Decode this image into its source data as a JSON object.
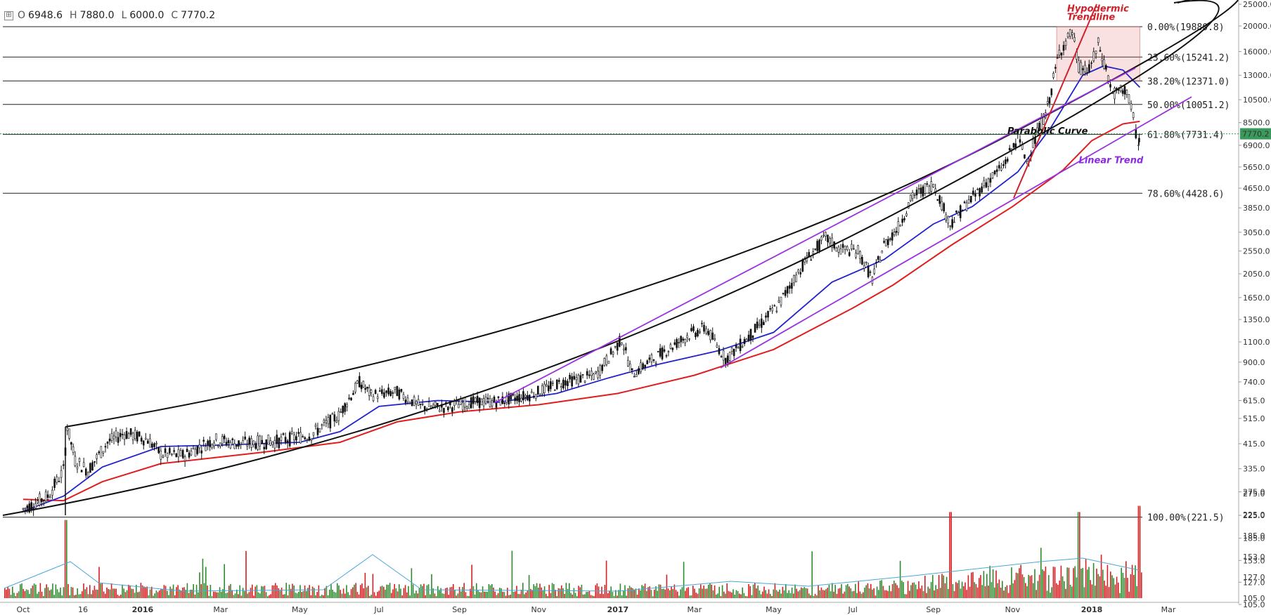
{
  "ohlc": {
    "toggle_icon": "collapse-icon",
    "o_key": "O",
    "o": "6948.6",
    "h_key": "H",
    "h": "7880.0",
    "l_key": "L",
    "l": "6000.0",
    "c_key": "C",
    "c": "7770.2"
  },
  "chart_data": {
    "type": "candlestick",
    "title": "",
    "y_scale": "log",
    "ylim": [
      100,
      25000
    ],
    "y_ticks": [
      "105.0",
      "127.0",
      "153.0",
      "185.0",
      "225.0",
      "275.0",
      "335.0",
      "415.0",
      "515.0",
      "615.0",
      "740.0",
      "900.0",
      "1100.0",
      "1350.0",
      "1650.0",
      "2050.0",
      "2550.0",
      "3050.0",
      "3850.0",
      "4650.0",
      "5650.0",
      "6900.0",
      "8500.0",
      "10500.0",
      "13000.0",
      "16000.0",
      "20000.0",
      "25000.0"
    ],
    "x_ticks": [
      {
        "label": "Oct",
        "date": "2015-10-01",
        "bold": false
      },
      {
        "label": "16",
        "date": "2015-11-16",
        "bold": false
      },
      {
        "label": "2016",
        "date": "2016-01-01",
        "bold": true
      },
      {
        "label": "Mar",
        "date": "2016-03-01",
        "bold": false
      },
      {
        "label": "May",
        "date": "2016-05-01",
        "bold": false
      },
      {
        "label": "Jul",
        "date": "2016-07-01",
        "bold": false
      },
      {
        "label": "Sep",
        "date": "2016-09-01",
        "bold": false
      },
      {
        "label": "Nov",
        "date": "2016-11-01",
        "bold": false
      },
      {
        "label": "2017",
        "date": "2017-01-01",
        "bold": true
      },
      {
        "label": "Mar",
        "date": "2017-03-01",
        "bold": false
      },
      {
        "label": "May",
        "date": "2017-05-01",
        "bold": false
      },
      {
        "label": "Jul",
        "date": "2017-07-01",
        "bold": false
      },
      {
        "label": "Sep",
        "date": "2017-09-01",
        "bold": false
      },
      {
        "label": "Nov",
        "date": "2017-11-01",
        "bold": false
      },
      {
        "label": "2018",
        "date": "2018-01-01",
        "bold": true
      },
      {
        "label": "Mar",
        "date": "2018-03-01",
        "bold": false
      }
    ],
    "last_price": {
      "label": "7770.2",
      "value": 7770.2,
      "color": "#3a9a5b"
    },
    "fib_levels": [
      {
        "label": "0.00%(19880.8)",
        "value": 19880.8
      },
      {
        "label": "23.60%(15241.2)",
        "value": 15241.2
      },
      {
        "label": "38.20%(12371.0)",
        "value": 12371.0
      },
      {
        "label": "50.00%(10051.2)",
        "value": 10051.2
      },
      {
        "label": "61.80%(7731.4)",
        "value": 7731.4
      },
      {
        "label": "78.60%(4428.6)",
        "value": 4428.6
      },
      {
        "label": "100.00%(221.5)",
        "value": 221.5
      }
    ],
    "price_series": [
      [
        "2015-10-01",
        237
      ],
      [
        "2015-10-20",
        265
      ],
      [
        "2015-11-01",
        330
      ],
      [
        "2015-11-04",
        480
      ],
      [
        "2015-11-10",
        360
      ],
      [
        "2015-11-20",
        330
      ],
      [
        "2015-12-05",
        420
      ],
      [
        "2015-12-18",
        455
      ],
      [
        "2016-01-05",
        430
      ],
      [
        "2016-01-15",
        380
      ],
      [
        "2016-02-01",
        375
      ],
      [
        "2016-02-25",
        430
      ],
      [
        "2016-03-15",
        415
      ],
      [
        "2016-04-15",
        425
      ],
      [
        "2016-05-10",
        450
      ],
      [
        "2016-05-31",
        530
      ],
      [
        "2016-06-16",
        740
      ],
      [
        "2016-06-25",
        650
      ],
      [
        "2016-07-15",
        670
      ],
      [
        "2016-08-02",
        580
      ],
      [
        "2016-08-20",
        575
      ],
      [
        "2016-09-10",
        605
      ],
      [
        "2016-10-01",
        610
      ],
      [
        "2016-10-25",
        650
      ],
      [
        "2016-11-20",
        740
      ],
      [
        "2016-12-15",
        790
      ],
      [
        "2017-01-04",
        1130
      ],
      [
        "2017-01-12",
        800
      ],
      [
        "2017-02-01",
        960
      ],
      [
        "2017-02-25",
        1180
      ],
      [
        "2017-03-10",
        1250
      ],
      [
        "2017-03-25",
        930
      ],
      [
        "2017-04-15",
        1200
      ],
      [
        "2017-05-05",
        1550
      ],
      [
        "2017-05-25",
        2300
      ],
      [
        "2017-06-10",
        2900
      ],
      [
        "2017-06-20",
        2600
      ],
      [
        "2017-07-05",
        2550
      ],
      [
        "2017-07-16",
        1950
      ],
      [
        "2017-07-25",
        2700
      ],
      [
        "2017-08-05",
        3200
      ],
      [
        "2017-08-16",
        4300
      ],
      [
        "2017-09-01",
        4850
      ],
      [
        "2017-09-14",
        3300
      ],
      [
        "2017-09-25",
        3900
      ],
      [
        "2017-10-10",
        4800
      ],
      [
        "2017-10-25",
        5700
      ],
      [
        "2017-11-05",
        7400
      ],
      [
        "2017-11-12",
        6000
      ],
      [
        "2017-11-28",
        9800
      ],
      [
        "2017-12-07",
        16000
      ],
      [
        "2017-12-17",
        19000
      ],
      [
        "2017-12-22",
        14000
      ],
      [
        "2017-12-30",
        13500
      ],
      [
        "2018-01-06",
        17000
      ],
      [
        "2018-01-12",
        13800
      ],
      [
        "2018-01-17",
        11000
      ],
      [
        "2018-01-28",
        11500
      ],
      [
        "2018-02-02",
        8800
      ],
      [
        "2018-02-06",
        6900
      ],
      [
        "2018-02-07",
        7770.2
      ]
    ],
    "ma_blue": [
      [
        "2015-10-01",
        233
      ],
      [
        "2015-11-01",
        265
      ],
      [
        "2015-12-01",
        340
      ],
      [
        "2016-01-15",
        405
      ],
      [
        "2016-03-01",
        410
      ],
      [
        "2016-05-01",
        420
      ],
      [
        "2016-06-01",
        460
      ],
      [
        "2016-07-01",
        580
      ],
      [
        "2016-08-15",
        615
      ],
      [
        "2016-10-01",
        605
      ],
      [
        "2016-11-15",
        660
      ],
      [
        "2016-12-25",
        770
      ],
      [
        "2017-02-01",
        880
      ],
      [
        "2017-03-20",
        1010
      ],
      [
        "2017-05-01",
        1200
      ],
      [
        "2017-06-15",
        1900
      ],
      [
        "2017-07-25",
        2350
      ],
      [
        "2017-09-01",
        3300
      ],
      [
        "2017-10-01",
        3900
      ],
      [
        "2017-11-05",
        5400
      ],
      [
        "2017-12-01",
        8200
      ],
      [
        "2017-12-25",
        13000
      ],
      [
        "2018-01-10",
        14100
      ],
      [
        "2018-01-25",
        13600
      ],
      [
        "2018-02-07",
        11700
      ]
    ],
    "ma_red": [
      [
        "2015-10-01",
        258
      ],
      [
        "2015-11-01",
        255
      ],
      [
        "2015-12-01",
        300
      ],
      [
        "2016-01-15",
        350
      ],
      [
        "2016-04-01",
        385
      ],
      [
        "2016-06-01",
        420
      ],
      [
        "2016-07-15",
        500
      ],
      [
        "2016-09-01",
        550
      ],
      [
        "2016-11-01",
        590
      ],
      [
        "2017-01-01",
        660
      ],
      [
        "2017-03-01",
        790
      ],
      [
        "2017-05-01",
        1020
      ],
      [
        "2017-07-01",
        1500
      ],
      [
        "2017-08-01",
        1850
      ],
      [
        "2017-09-15",
        2700
      ],
      [
        "2017-11-01",
        3900
      ],
      [
        "2017-12-10",
        5500
      ],
      [
        "2018-01-01",
        7200
      ],
      [
        "2018-01-25",
        8400
      ],
      [
        "2018-02-07",
        8600
      ]
    ],
    "volume_ylim": [
      100,
      280
    ],
    "volume_ticks": [
      "105.0",
      "127.0",
      "153.0",
      "185.0",
      "225.0",
      "275.0"
    ],
    "annotations": [
      {
        "text": "Parabolic Curve",
        "date": "2017-10-28",
        "value": 7650,
        "color": "#111111"
      },
      {
        "text": "Hypodermic",
        "date": "2017-12-13",
        "value": 23200,
        "color": "#d0202a"
      },
      {
        "text": "Trendline",
        "date": "2017-12-13",
        "value": 21300,
        "color": "#d0202a"
      },
      {
        "text": "Linear Trend",
        "date": "2017-12-22",
        "value": 5850,
        "color": "#8b2be2"
      }
    ]
  }
}
